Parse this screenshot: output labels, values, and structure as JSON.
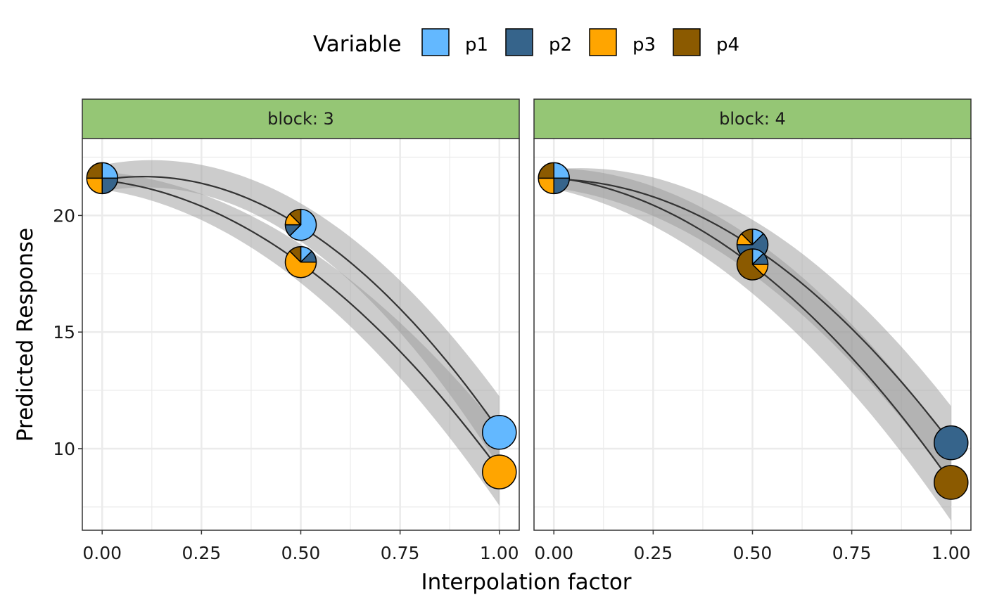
{
  "chart_data": {
    "type": "line",
    "xlabel": "Interpolation factor",
    "ylabel": "Predicted Response",
    "xlim": [
      -0.05,
      1.05
    ],
    "ylim": [
      6.5,
      23.3
    ],
    "x_ticks": [
      0,
      0.25,
      0.5,
      0.75,
      1
    ],
    "x_tick_labels": [
      "0.00",
      "0.25",
      "0.50",
      "0.75",
      "1.00"
    ],
    "y_ticks": [
      10,
      15,
      20
    ],
    "y_tick_labels": [
      "10",
      "15",
      "20"
    ],
    "grid": true,
    "legend": {
      "title": "Variable",
      "position": "top",
      "entries": [
        {
          "name": "p1",
          "color": "#63B8FF"
        },
        {
          "name": "p2",
          "color": "#36648B"
        },
        {
          "name": "p3",
          "color": "#FFA500"
        },
        {
          "name": "p4",
          "color": "#8B5A00"
        }
      ]
    },
    "strip_color": "#95C675",
    "band_color": "#999999",
    "panels": [
      {
        "strip_label": "block: 3",
        "series": [
          {
            "x": [
              0,
              0.25,
              0.5,
              0.75,
              1
            ],
            "y": [
              21.6,
              21.2,
              19.6,
              16.1,
              10.7
            ],
            "ci_low": [
              21.1,
              20.7,
              19.1,
              14.9,
              9.2
            ],
            "ci_high": [
              22.1,
              22.4,
              20.2,
              17.4,
              12.2
            ]
          },
          {
            "x": [
              0,
              0.25,
              0.5,
              0.75,
              1
            ],
            "y": [
              21.6,
              20.2,
              18.0,
              14.3,
              9.0
            ],
            "ci_low": [
              21.2,
              19.6,
              17.2,
              13.1,
              7.5
            ],
            "ci_high": [
              22.0,
              20.7,
              18.7,
              15.7,
              10.7
            ]
          }
        ],
        "points": [
          {
            "x": 0,
            "y": 21.6,
            "size": "small",
            "props": {
              "p1": 0.25,
              "p2": 0.25,
              "p3": 0.25,
              "p4": 0.25
            }
          },
          {
            "x": 0.5,
            "y": 19.6,
            "size": "small",
            "props": {
              "p1": 0.625,
              "p2": 0.125,
              "p3": 0.125,
              "p4": 0.125
            }
          },
          {
            "x": 0.5,
            "y": 18.0,
            "size": "small",
            "props": {
              "p1": 0.125,
              "p2": 0.125,
              "p3": 0.625,
              "p4": 0.125
            }
          },
          {
            "x": 1,
            "y": 10.7,
            "size": "large",
            "props": {
              "p1": 1,
              "p2": 0,
              "p3": 0,
              "p4": 0
            }
          },
          {
            "x": 1,
            "y": 9.0,
            "size": "large",
            "props": {
              "p1": 0,
              "p2": 0,
              "p3": 1,
              "p4": 0
            }
          }
        ]
      },
      {
        "strip_label": "block: 4",
        "series": [
          {
            "x": [
              0,
              0.25,
              0.5,
              0.75,
              1
            ],
            "y": [
              21.6,
              20.7,
              18.7,
              15.2,
              10.2
            ],
            "ci_low": [
              21.2,
              19.9,
              17.6,
              13.6,
              8.6
            ],
            "ci_high": [
              22.1,
              21.4,
              19.8,
              16.8,
              11.7
            ]
          },
          {
            "x": [
              0,
              0.25,
              0.5,
              0.75,
              1
            ],
            "y": [
              21.6,
              20.5,
              17.9,
              13.8,
              8.6
            ],
            "ci_low": [
              21.1,
              19.6,
              16.8,
              12.2,
              7.0
            ],
            "ci_high": [
              22.0,
              21.3,
              19.0,
              15.3,
              10.2
            ]
          }
        ],
        "points": [
          {
            "x": 0,
            "y": 21.6,
            "size": "small",
            "props": {
              "p1": 0.25,
              "p2": 0.25,
              "p3": 0.25,
              "p4": 0.25
            }
          },
          {
            "x": 0.5,
            "y": 18.75,
            "size": "small",
            "props": {
              "p1": 0.125,
              "p2": 0.625,
              "p3": 0.125,
              "p4": 0.125
            }
          },
          {
            "x": 0.5,
            "y": 17.9,
            "size": "small",
            "props": {
              "p1": 0.125,
              "p2": 0.125,
              "p3": 0.125,
              "p4": 0.625
            }
          },
          {
            "x": 1,
            "y": 10.25,
            "size": "large",
            "props": {
              "p1": 0,
              "p2": 1,
              "p3": 0,
              "p4": 0
            }
          },
          {
            "x": 1,
            "y": 8.55,
            "size": "large",
            "props": {
              "p1": 0,
              "p2": 0,
              "p3": 0,
              "p4": 1
            }
          }
        ]
      }
    ]
  }
}
